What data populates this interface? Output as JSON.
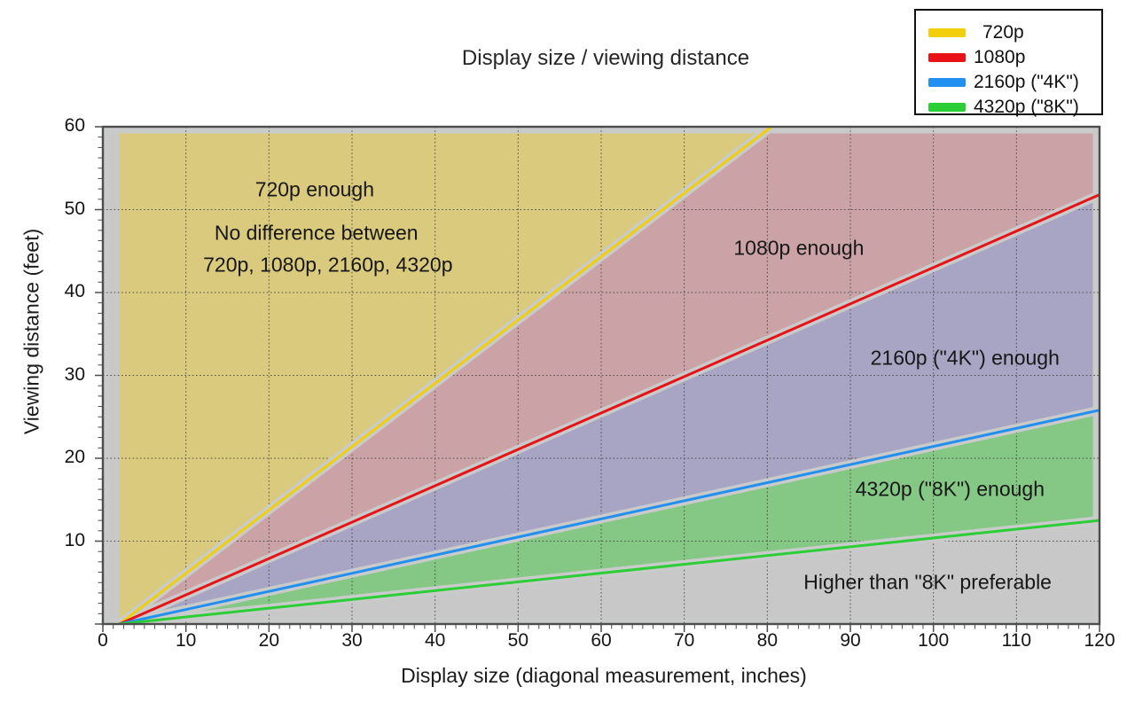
{
  "title": "Display size / viewing distance",
  "legend": {
    "items": [
      {
        "label": "720p",
        "color": "#F3CE0A"
      },
      {
        "label": "1080p",
        "color": "#E81217"
      },
      {
        "label": "2160p (\"4K\")",
        "color": "#2290F0"
      },
      {
        "label": "4320p (\"8K\")",
        "color": "#2BCE35"
      }
    ]
  },
  "colors": {
    "plot_bg": "#C8C8C8",
    "band": "#C9CACA",
    "spine": "#4D4D4D",
    "grid": "#3D3D3D",
    "legend_border": "#101010"
  },
  "chart_data": {
    "type": "area",
    "title": "Display size / viewing distance",
    "xlabel": "Display size (diagonal measurement, inches)",
    "ylabel": "Viewing distance (feet)",
    "xlim": [
      0,
      120
    ],
    "ylim": [
      0,
      60
    ],
    "x_tick_labels": [
      "0",
      "10",
      "20",
      "30",
      "40",
      "50",
      "60",
      "70",
      "80",
      "90",
      "100",
      "110",
      "120"
    ],
    "y_tick_labels": [
      "10",
      "20",
      "30",
      "40",
      "50",
      "60"
    ],
    "major_tick_step": 10,
    "minor_tick_step": 1.25,
    "grid": "dotted major gridlines every 10 units, drawn over region fills",
    "legend_position": "top-right",
    "origin_point": [
      2,
      0
    ],
    "series": [
      {
        "name": "720p",
        "color": "#F3CE0A",
        "slope_ft_per_inch": 0.764,
        "points": [
          [
            2,
            0
          ],
          [
            80.5,
            60
          ]
        ]
      },
      {
        "name": "1080p",
        "color": "#E81217",
        "slope_ft_per_inch": 0.439,
        "points": [
          [
            2,
            0
          ],
          [
            120,
            51.8
          ]
        ]
      },
      {
        "name": "2160p (\"4K\")",
        "color": "#2290F0",
        "slope_ft_per_inch": 0.219,
        "points": [
          [
            2,
            0
          ],
          [
            120,
            25.8
          ]
        ]
      },
      {
        "name": "4320p (\"8K\")",
        "color": "#2BCE35",
        "slope_ft_per_inch": 0.106,
        "points": [
          [
            2,
            0
          ],
          [
            120,
            12.5
          ]
        ]
      }
    ],
    "regions": [
      {
        "label": "720p enough",
        "fill": "#D9CA7D",
        "polygon": [
          [
            2,
            0
          ],
          [
            80.5,
            60
          ],
          [
            2,
            60
          ]
        ]
      },
      {
        "label": "1080p enough",
        "fill": "#CBA3A6",
        "polygon": [
          [
            2,
            0
          ],
          [
            80.5,
            60
          ],
          [
            120,
            60
          ],
          [
            120,
            51.8
          ]
        ]
      },
      {
        "label": "2160p (\"4K\") enough",
        "fill": "#A8A5C4",
        "polygon": [
          [
            2,
            0
          ],
          [
            120,
            51.8
          ],
          [
            120,
            25.8
          ]
        ]
      },
      {
        "label": "4320p (\"8K\") enough",
        "fill": "#85C785",
        "polygon": [
          [
            2,
            0
          ],
          [
            120,
            25.8
          ],
          [
            120,
            12.5
          ]
        ]
      },
      {
        "label": "Higher than \"8K\" preferable",
        "fill": "#C8C8C8",
        "background": true,
        "polygon": [
          [
            0,
            0
          ],
          [
            2,
            0
          ],
          [
            120,
            12.5
          ],
          [
            120,
            0
          ]
        ]
      }
    ],
    "annotations": [
      {
        "text": "720p enough",
        "x": 25.5,
        "y": 52.4
      },
      {
        "text": "No difference between",
        "x": 25.7,
        "y": 47.2
      },
      {
        "text": "720p, 1080p, 2160p, 4320p",
        "x": 27.1,
        "y": 43.3
      },
      {
        "text": "1080p enough",
        "x": 83.8,
        "y": 45.3
      },
      {
        "text": "2160p (\"4K\") enough",
        "x": 103.8,
        "y": 32.1
      },
      {
        "text": "4320p (\"8K\") enough",
        "x": 102.0,
        "y": 16.3
      },
      {
        "text": "Higher than \"8K\" preferable",
        "x": 99.3,
        "y": 5.0
      }
    ]
  }
}
